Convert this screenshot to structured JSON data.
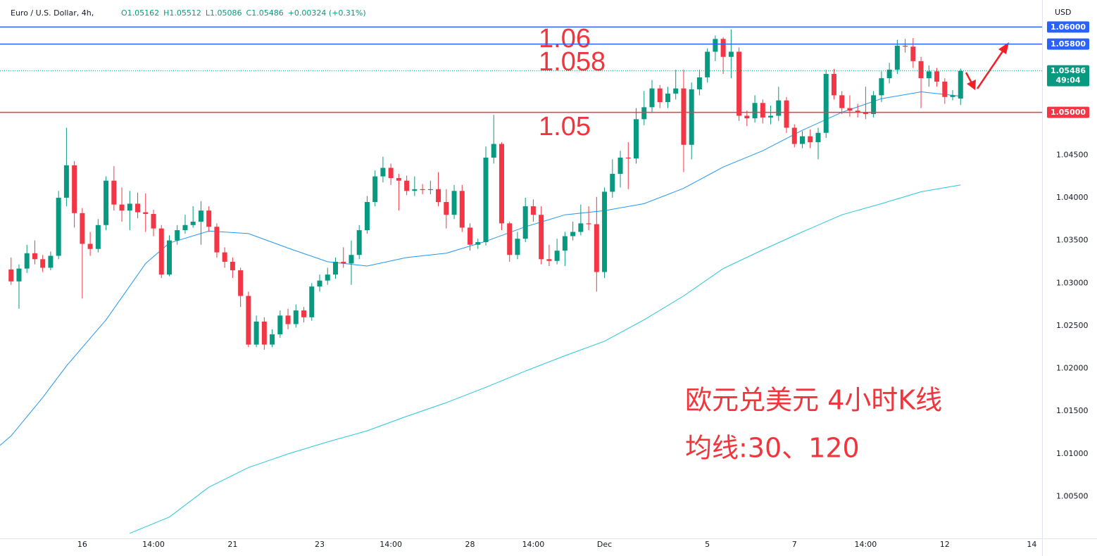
{
  "chart_data": {
    "type": "candlestick",
    "title": "Euro / U.S. Dollar, 4h,",
    "legend_values": [
      "O1.05162",
      "H1.05512",
      "L1.05086",
      "C1.05486",
      "+0.00324 (+0.31%)"
    ],
    "currency": "USD",
    "up_color": "#089981",
    "down_color": "#f23645",
    "xlim": [
      -1.4,
      130.3
    ],
    "ylim": [
      1.0001,
      1.0625
    ],
    "xticks": [
      {
        "value": 9,
        "label": "16"
      },
      {
        "value": 18,
        "label": "14:00"
      },
      {
        "value": 28,
        "label": "21"
      },
      {
        "value": 39,
        "label": "23"
      },
      {
        "value": 48,
        "label": "14:00"
      },
      {
        "value": 58,
        "label": "28"
      },
      {
        "value": 66,
        "label": "14:00"
      },
      {
        "value": 75,
        "label": "Dec"
      },
      {
        "value": 88,
        "label": "5"
      },
      {
        "value": 99,
        "label": "7"
      },
      {
        "value": 108,
        "label": "14:00"
      },
      {
        "value": 118,
        "label": "12"
      },
      {
        "value": 129,
        "label": "14"
      }
    ],
    "yticks": [
      {
        "value": 1.045,
        "label": "1.04500"
      },
      {
        "value": 1.04,
        "label": "1.04000"
      },
      {
        "value": 1.035,
        "label": "1.03500"
      },
      {
        "value": 1.03,
        "label": "1.03000"
      },
      {
        "value": 1.025,
        "label": "1.02500"
      },
      {
        "value": 1.02,
        "label": "1.02000"
      },
      {
        "value": 1.015,
        "label": "1.01500"
      },
      {
        "value": 1.01,
        "label": "1.01000"
      },
      {
        "value": 1.005,
        "label": "1.00500"
      }
    ],
    "x": [
      0,
      1,
      2,
      3,
      4,
      5,
      6,
      7,
      8,
      9,
      10,
      11,
      12,
      13,
      14,
      15,
      16,
      17,
      18,
      19,
      20,
      21,
      22,
      23,
      24,
      25,
      26,
      27,
      28,
      29,
      30,
      31,
      32,
      33,
      34,
      35,
      36,
      37,
      38,
      39,
      40,
      41,
      42,
      43,
      44,
      45,
      46,
      47,
      48,
      49,
      50,
      51,
      52,
      53,
      54,
      55,
      56,
      57,
      58,
      59,
      60,
      61,
      62,
      63,
      64,
      65,
      66,
      67,
      68,
      69,
      70,
      71,
      72,
      73,
      74,
      75,
      76,
      77,
      78,
      79,
      80,
      81,
      82,
      83,
      84,
      85,
      86,
      87,
      88,
      89,
      90,
      91,
      92,
      93,
      94,
      95,
      96,
      97,
      98,
      99,
      100,
      101,
      102,
      103,
      104,
      105,
      106,
      107,
      108,
      109,
      110,
      111,
      112,
      113,
      114,
      115,
      116,
      117,
      118,
      119,
      120
    ],
    "open": [
      1.0316,
      1.0302,
      1.0317,
      1.0335,
      1.0328,
      1.0318,
      1.0332,
      1.04,
      1.0438,
      1.0382,
      1.0346,
      1.034,
      1.0368,
      1.042,
      1.0392,
      1.0385,
      1.0393,
      1.0383,
      1.0381,
      1.0364,
      1.031,
      1.035,
      1.0362,
      1.0368,
      1.0372,
      1.0385,
      1.0366,
      1.0336,
      1.0325,
      1.0315,
      1.0285,
      1.0228,
      1.0255,
      1.0228,
      1.024,
      1.0262,
      1.0252,
      1.0268,
      1.026,
      1.0296,
      1.0303,
      1.031,
      1.0325,
      1.0323,
      1.0333,
      1.0362,
      1.0395,
      1.0425,
      1.0435,
      1.0423,
      1.042,
      1.0408,
      1.041,
      1.0409,
      1.041,
      1.0395,
      1.038,
      1.0408,
      1.0365,
      1.0345,
      1.0348,
      1.0447,
      1.0463,
      1.037,
      1.0333,
      1.0352,
      1.039,
      1.038,
      1.0328,
      1.0326,
      1.0338,
      1.0355,
      1.036,
      1.037,
      1.0369,
      1.0313,
      1.0407,
      1.0428,
      1.0447,
      1.0446,
      1.0492,
      1.0506,
      1.0528,
      1.0512,
      1.0522,
      1.0528,
      1.0462,
      1.0527,
      1.0541,
      1.0571,
      1.0586,
      1.0565,
      1.0571,
      1.0496,
      1.0493,
      1.0511,
      1.0494,
      1.0496,
      1.0514,
      1.0482,
      1.0463,
      1.0472,
      1.0465,
      1.0476,
      1.0545,
      1.052,
      1.0505,
      1.0502,
      1.05,
      1.0498,
      1.052,
      1.054,
      1.055,
      1.0578,
      1.0577,
      1.056,
      1.054,
      1.0548,
      1.0536,
      1.0518,
      1.05162
    ],
    "high": [
      1.033,
      1.0322,
      1.0345,
      1.035,
      1.0333,
      1.0337,
      1.0408,
      1.0482,
      1.0443,
      1.0388,
      1.036,
      1.0375,
      1.0425,
      1.0437,
      1.0412,
      1.0408,
      1.0406,
      1.0405,
      1.0386,
      1.0368,
      1.0356,
      1.0368,
      1.038,
      1.039,
      1.0396,
      1.039,
      1.037,
      1.0342,
      1.033,
      1.0318,
      1.029,
      1.0262,
      1.026,
      1.0246,
      1.0268,
      1.027,
      1.0275,
      1.0272,
      1.03,
      1.031,
      1.0318,
      1.033,
      1.0342,
      1.035,
      1.0368,
      1.0402,
      1.0432,
      1.0448,
      1.044,
      1.0428,
      1.0426,
      1.0425,
      1.0416,
      1.042,
      1.043,
      1.041,
      1.0415,
      1.0415,
      1.037,
      1.0352,
      1.046,
      1.0497,
      1.0465,
      1.0372,
      1.036,
      1.04,
      1.0398,
      1.039,
      1.0345,
      1.0352,
      1.036,
      1.0372,
      1.0392,
      1.039,
      1.0401,
      1.0412,
      1.0445,
      1.0455,
      1.0465,
      1.0505,
      1.0525,
      1.0538,
      1.0532,
      1.053,
      1.055,
      1.055,
      1.0535,
      1.055,
      1.0575,
      1.059,
      1.0588,
      1.0597,
      1.0576,
      1.0502,
      1.052,
      1.0515,
      1.0508,
      1.053,
      1.0518,
      1.0486,
      1.0478,
      1.048,
      1.0482,
      1.055,
      1.0551,
      1.0525,
      1.052,
      1.051,
      1.053,
      1.0525,
      1.0548,
      1.0558,
      1.0585,
      1.0586,
      1.0587,
      1.0565,
      1.0555,
      1.0552,
      1.054,
      1.0526,
      1.05512
    ],
    "low": [
      1.0298,
      1.027,
      1.0312,
      1.0322,
      1.0313,
      1.0315,
      1.0328,
      1.039,
      1.0365,
      1.0282,
      1.0332,
      1.0336,
      1.0362,
      1.0385,
      1.0372,
      1.0362,
      1.0376,
      1.036,
      1.0355,
      1.0306,
      1.0308,
      1.0345,
      1.0358,
      1.0365,
      1.0345,
      1.036,
      1.033,
      1.0318,
      1.0306,
      1.0272,
      1.0225,
      1.0225,
      1.0222,
      1.0225,
      1.0236,
      1.0246,
      1.0248,
      1.0254,
      1.0256,
      1.029,
      1.0298,
      1.0305,
      1.0318,
      1.0298,
      1.0328,
      1.0358,
      1.039,
      1.0418,
      1.0415,
      1.0385,
      1.0403,
      1.0402,
      1.0404,
      1.0404,
      1.039,
      1.0364,
      1.0375,
      1.036,
      1.0338,
      1.034,
      1.0344,
      1.044,
      1.0362,
      1.0325,
      1.0328,
      1.0348,
      1.0372,
      1.0322,
      1.032,
      1.0322,
      1.032,
      1.035,
      1.0356,
      1.0362,
      1.029,
      1.0306,
      1.04,
      1.0412,
      1.041,
      1.044,
      1.0485,
      1.05,
      1.0505,
      1.0505,
      1.0515,
      1.043,
      1.0445,
      1.052,
      1.0535,
      1.056,
      1.0545,
      1.054,
      1.049,
      1.0484,
      1.0488,
      1.0487,
      1.0486,
      1.049,
      1.0476,
      1.0459,
      1.0458,
      1.0458,
      1.0445,
      1.047,
      1.0515,
      1.0498,
      1.0495,
      1.0494,
      1.0492,
      1.0494,
      1.0512,
      1.0534,
      1.0545,
      1.057,
      1.0552,
      1.0505,
      1.053,
      1.053,
      1.051,
      1.0514,
      1.05086
    ],
    "close": [
      1.0302,
      1.0317,
      1.0335,
      1.0328,
      1.0318,
      1.0332,
      1.04,
      1.0438,
      1.0382,
      1.0346,
      1.034,
      1.0368,
      1.042,
      1.0392,
      1.0385,
      1.0393,
      1.0383,
      1.0381,
      1.0364,
      1.031,
      1.035,
      1.0362,
      1.0368,
      1.0372,
      1.0385,
      1.0366,
      1.0336,
      1.0325,
      1.0315,
      1.0285,
      1.0228,
      1.0255,
      1.0228,
      1.024,
      1.0262,
      1.0252,
      1.0268,
      1.026,
      1.0296,
      1.0303,
      1.031,
      1.0325,
      1.0323,
      1.0333,
      1.0362,
      1.0395,
      1.0425,
      1.0435,
      1.0423,
      1.042,
      1.0408,
      1.041,
      1.0409,
      1.041,
      1.0395,
      1.038,
      1.0408,
      1.0365,
      1.0345,
      1.0348,
      1.0447,
      1.0463,
      1.037,
      1.0333,
      1.0352,
      1.039,
      1.038,
      1.0328,
      1.0326,
      1.0338,
      1.0355,
      1.036,
      1.037,
      1.0369,
      1.0313,
      1.0407,
      1.0428,
      1.0447,
      1.0446,
      1.0492,
      1.0506,
      1.0528,
      1.0512,
      1.0522,
      1.0528,
      1.0462,
      1.0527,
      1.0541,
      1.0571,
      1.0586,
      1.0565,
      1.0571,
      1.0496,
      1.0493,
      1.0511,
      1.0494,
      1.0496,
      1.0514,
      1.0482,
      1.0463,
      1.0472,
      1.0465,
      1.0476,
      1.0545,
      1.052,
      1.0505,
      1.0502,
      1.05,
      1.0498,
      1.052,
      1.054,
      1.055,
      1.0578,
      1.0577,
      1.056,
      1.054,
      1.0548,
      1.0536,
      1.0518,
      1.052,
      1.05486
    ],
    "ma_lines": [
      {
        "color": "#2196f3",
        "x": [
          -1.4,
          0,
          4,
          7,
          12,
          17,
          20,
          25,
          30,
          35,
          40,
          45,
          50,
          55,
          60,
          65,
          70,
          75,
          80,
          85,
          90,
          95,
          100,
          105,
          110,
          115,
          120
        ],
        "values": [
          1.011,
          1.0121,
          1.0166,
          1.0203,
          1.0257,
          1.0323,
          1.0347,
          1.0361,
          1.0358,
          1.0341,
          1.0325,
          1.032,
          1.033,
          1.0335,
          1.0349,
          1.0366,
          1.038,
          1.0385,
          1.0393,
          1.0411,
          1.0436,
          1.0455,
          1.0479,
          1.05,
          1.0516,
          1.0524,
          1.0519
        ]
      },
      {
        "color": "#26c6da",
        "x": [
          15,
          20,
          25,
          30,
          35,
          40,
          45,
          50,
          55,
          60,
          65,
          70,
          75,
          80,
          85,
          90,
          95,
          100,
          105,
          110,
          115,
          120
        ],
        "values": [
          1.0007,
          1.0026,
          1.0061,
          1.0084,
          1.01,
          1.0114,
          1.0127,
          1.0144,
          1.016,
          1.0178,
          1.0197,
          1.0215,
          1.0232,
          1.0257,
          1.0285,
          1.0317,
          1.0339,
          1.036,
          1.038,
          1.0393,
          1.0407,
          1.0415
        ]
      }
    ],
    "levels": [
      {
        "value": 1.06,
        "label": "1.06000",
        "color": "#2962ff"
      },
      {
        "value": 1.058,
        "label": "1.05800",
        "color": "#2962ff"
      },
      {
        "value": 1.05,
        "label": "1.05000",
        "color": "#f23645"
      }
    ],
    "last_price": {
      "value": 1.05486,
      "label": "1.05486",
      "countdown": "49:04",
      "color": "#089981"
    },
    "annotations": [
      "1.06",
      "1.058",
      "1.05"
    ],
    "notes": [
      "欧元兑美元 4小时K线",
      "均线:30、120"
    ]
  }
}
